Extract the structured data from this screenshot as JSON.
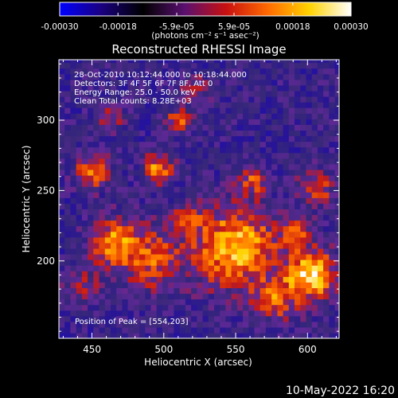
{
  "colorbar": {
    "ticks": [
      "-0.00030",
      "-0.00018",
      "-5.9e-05",
      "5.9e-05",
      "0.00018",
      "0.00030"
    ],
    "tick_values": [
      -0.0003,
      -0.00018,
      -5.9e-05,
      5.9e-05,
      0.00018,
      0.0003
    ],
    "range": [
      -0.0003,
      0.0003
    ],
    "units_label": "(photons cm⁻² s⁻¹ asec⁻²)",
    "colors": [
      "#0000ff",
      "#1a0080",
      "#000000",
      "#5a1070",
      "#c81010",
      "#ff6a00",
      "#ffd200",
      "#ffffff"
    ]
  },
  "chart_data": {
    "type": "heatmap",
    "title": "Reconstructed RHESSI Image",
    "xlabel": "Heliocentric X (arcsec)",
    "ylabel": "Heliocentric Y (arcsec)",
    "xlim": [
      427,
      622
    ],
    "ylim": [
      145,
      343
    ],
    "x_ticks": [
      450,
      500,
      550,
      600
    ],
    "y_ticks": [
      200,
      250,
      300
    ],
    "x_tick_labels": [
      "450",
      "500",
      "550",
      "600"
    ],
    "y_tick_labels": [
      "200",
      "250",
      "300"
    ],
    "annotations": [
      "28-Oct-2010 10:12:44.000 to 10:18:44.000",
      "Detectors: 3F 4F 5F 6F 7F 8F, Att 0",
      "Energy Range: 25.0 - 50.0 keV",
      "Clean     Total counts: 8.28E+03"
    ],
    "peak_label": "Position of Peak = [554,203]",
    "peak_position": [
      554,
      203
    ],
    "grid": false
  },
  "footer": {
    "date": "10-May-2022 16:20"
  }
}
